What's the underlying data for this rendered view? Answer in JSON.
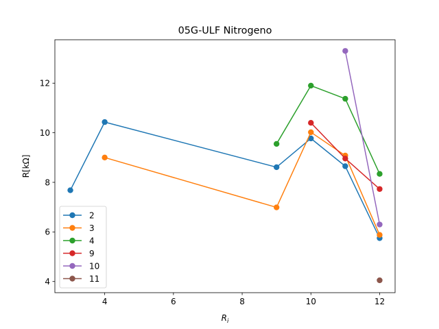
{
  "chart_data": {
    "type": "line",
    "title": "05G-ULF Nitrogeno",
    "xlabel": "R",
    "xlabel_sub": "i",
    "ylabel": "R[kΩ]",
    "xlim": [
      2.55,
      12.45
    ],
    "ylim": [
      3.55,
      13.75
    ],
    "xticks": [
      4,
      6,
      8,
      10,
      12
    ],
    "yticks": [
      4,
      6,
      8,
      10,
      12
    ],
    "grid": false,
    "legend_position": "lower-left",
    "series": [
      {
        "name": "2",
        "color": "#1f77b4",
        "x": [
          3,
          4,
          9,
          10,
          11,
          12
        ],
        "y": [
          7.68,
          10.43,
          8.61,
          9.77,
          8.65,
          5.75
        ]
      },
      {
        "name": "3",
        "color": "#ff7f0e",
        "x": [
          4,
          9,
          10,
          11,
          12
        ],
        "y": [
          9.0,
          6.99,
          10.02,
          9.08,
          5.88
        ]
      },
      {
        "name": "4",
        "color": "#2ca02c",
        "x": [
          9,
          10,
          11,
          12
        ],
        "y": [
          9.55,
          11.9,
          11.37,
          8.34
        ]
      },
      {
        "name": "9",
        "color": "#d62728",
        "x": [
          10,
          11,
          12
        ],
        "y": [
          10.4,
          8.96,
          7.73
        ]
      },
      {
        "name": "10",
        "color": "#9467bd",
        "x": [
          11,
          12
        ],
        "y": [
          13.3,
          6.3
        ]
      },
      {
        "name": "11",
        "color": "#8c564b",
        "x": [
          12
        ],
        "y": [
          4.05
        ]
      }
    ]
  }
}
